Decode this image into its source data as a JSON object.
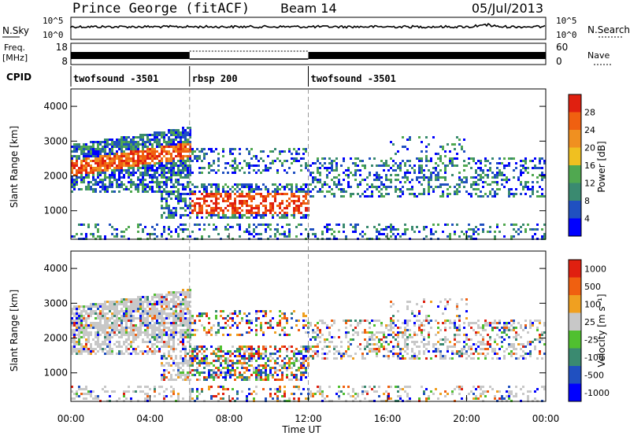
{
  "header": {
    "station": "Prince George (fitACF)",
    "beam": "Beam 14",
    "date": "05/Jul/2013"
  },
  "side_labels": {
    "nsky": "N.Sky",
    "freq_line1": "Freq.",
    "freq_line2": "[MHz]",
    "cpid": "CPID",
    "nsearch": "N.Search",
    "nave": "Nave"
  },
  "strip_ticks": {
    "nsky": [
      "10^5",
      "10^0"
    ],
    "nsearch": [
      "10^5",
      "10^0"
    ],
    "freq": [
      "18",
      "8"
    ],
    "nave": [
      "60",
      "0"
    ]
  },
  "cpid_segments": [
    {
      "label": "twofsound -3501",
      "start_hour": 0,
      "end_hour": 6
    },
    {
      "label": "rbsp 200",
      "start_hour": 6,
      "end_hour": 12
    },
    {
      "label": "twofsound -3501",
      "start_hour": 12,
      "end_hour": 24
    }
  ],
  "colors": {
    "power": [
      "#0000ff",
      "#2050c0",
      "#3a8a70",
      "#50a850",
      "#f0c020",
      "#f09020",
      "#f06010",
      "#e02010"
    ],
    "velocity": [
      "#0000ff",
      "#2050c0",
      "#3a8a70",
      "#50c030",
      "#c8c8c8",
      "#f0a020",
      "#f06010",
      "#e02010"
    ]
  },
  "chart_data": [
    {
      "type": "heatmap",
      "name": "power",
      "ylabel": "Slant Range [km]",
      "ylim": [
        180,
        4500
      ],
      "yticks": [
        "1000",
        "2000",
        "3000",
        "4000"
      ],
      "colorbar_label": "Power [dB]",
      "colorbar_ticks": [
        "4",
        "8",
        "12",
        "16",
        "20",
        "24",
        "28"
      ],
      "clim": [
        0,
        32
      ],
      "x_start_hour": 0,
      "x_end_hour": 24
    },
    {
      "type": "heatmap",
      "name": "velocity",
      "ylabel": "Slant Range [km]",
      "ylim": [
        180,
        4500
      ],
      "yticks": [
        "1000",
        "2000",
        "3000",
        "4000"
      ],
      "colorbar_label": "Velocity [m s⁻¹]",
      "colorbar_ticks": [
        "1000",
        "500",
        "100",
        "25",
        "-25",
        "-100",
        "-500",
        "-1000"
      ],
      "x_start_hour": 0,
      "x_end_hour": 24
    }
  ],
  "xaxis": {
    "ticks": [
      "00:00",
      "04:00",
      "08:00",
      "12:00",
      "16:00",
      "20:00",
      "00:00"
    ],
    "label": "Time UT"
  }
}
